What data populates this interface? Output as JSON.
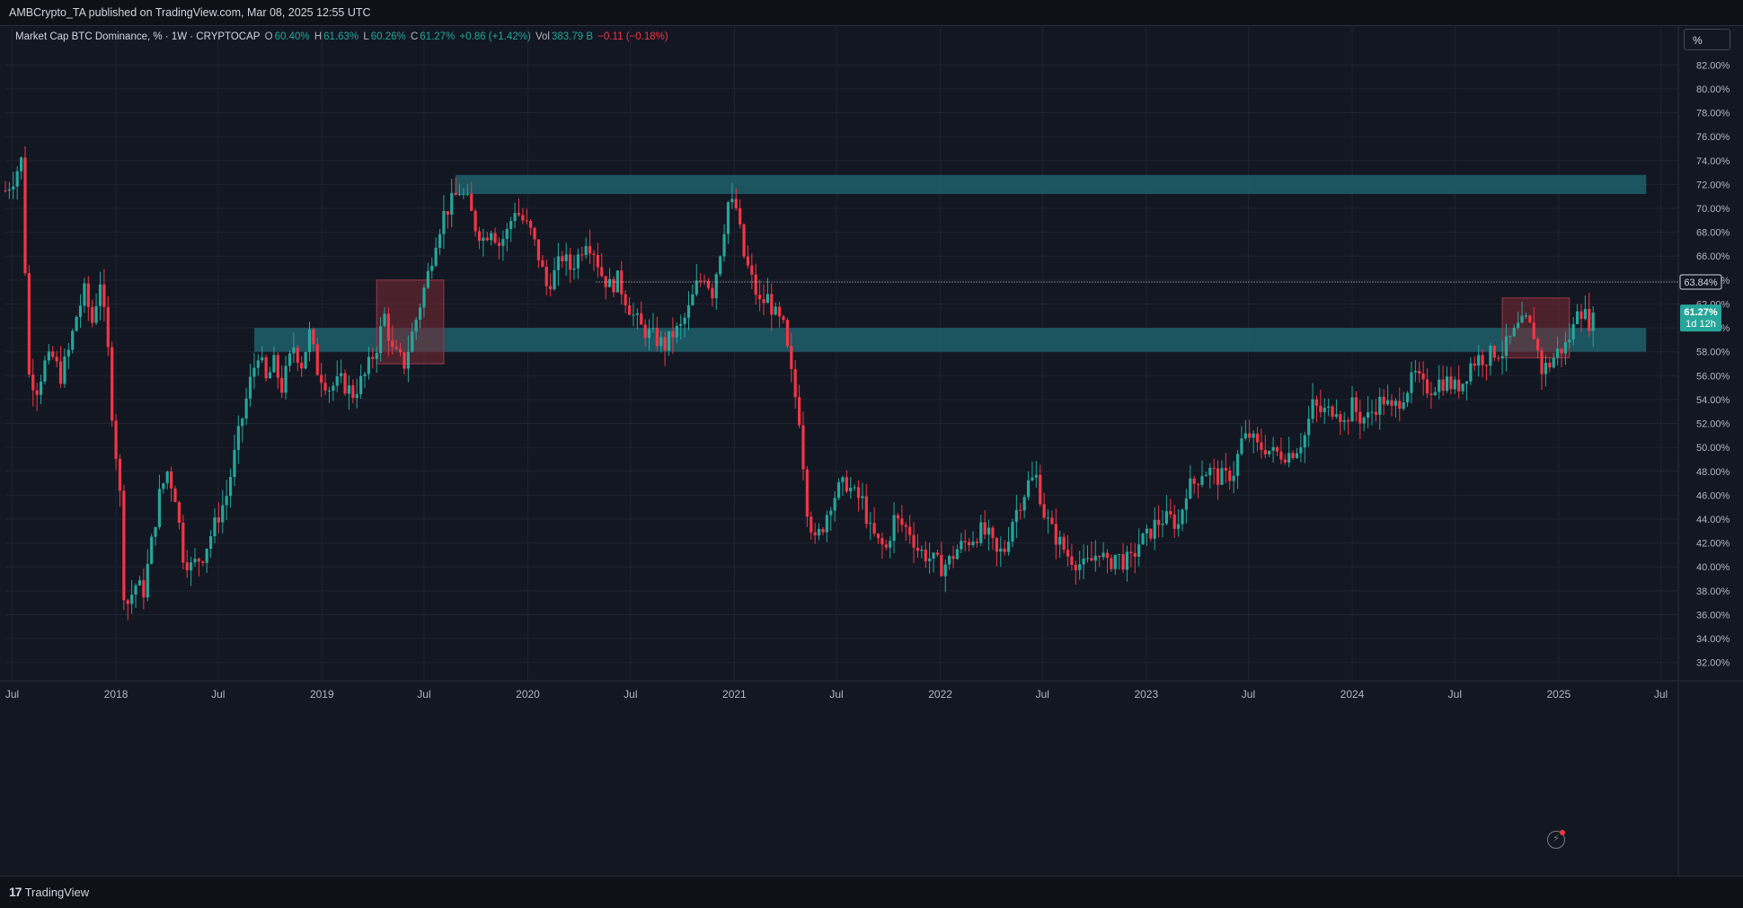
{
  "header": {
    "publisher": "AMBCrypto_TA published on TradingView.com, Mar 08, 2025 12:55 UTC"
  },
  "legend": {
    "symbol": "Market Cap BTC Dominance, % · 1W · CRYPTOCAP",
    "o_label": "O",
    "o_value": "60.40%",
    "h_label": "H",
    "h_value": "61.63%",
    "l_label": "L",
    "l_value": "60.26%",
    "c_label": "C",
    "c_value": "61.27%",
    "change": "+0.86 (+1.42%)",
    "vol_label": "Vol",
    "vol_value": "383.79 B",
    "vol_change": "−0.11 (−0.18%)"
  },
  "scale_button": "%",
  "footer": {
    "brand": "TradingView",
    "brand_mark": "17"
  },
  "colors": {
    "up": "#26a69a",
    "down": "#f23645",
    "zone": "#1e5f6b",
    "red_zone": "#7a2a35",
    "bg": "#131722"
  },
  "chart_data": {
    "type": "candlestick",
    "title": "Market Cap BTC Dominance, % · 1W · CRYPTOCAP",
    "y_unit": "%",
    "ylim": [
      31,
      83
    ],
    "y_ticks": [
      "82.00%",
      "80.00%",
      "78.00%",
      "76.00%",
      "74.00%",
      "72.00%",
      "70.00%",
      "68.00%",
      "66.00%",
      "64.00%",
      "62.00%",
      "60.00%",
      "58.00%",
      "56.00%",
      "54.00%",
      "52.00%",
      "50.00%",
      "48.00%",
      "46.00%",
      "44.00%",
      "42.00%",
      "40.00%",
      "38.00%",
      "36.00%",
      "34.00%",
      "32.00%"
    ],
    "x_range": [
      "2017-06-19",
      "2025-08-01"
    ],
    "x_ticks": [
      {
        "label": "Jul",
        "date": "2017-07-01"
      },
      {
        "label": "2018",
        "date": "2018-01-01"
      },
      {
        "label": "Jul",
        "date": "2018-07-01"
      },
      {
        "label": "2019",
        "date": "2019-01-01"
      },
      {
        "label": "Jul",
        "date": "2019-07-01"
      },
      {
        "label": "2020",
        "date": "2020-01-01"
      },
      {
        "label": "Jul",
        "date": "2020-07-01"
      },
      {
        "label": "2021",
        "date": "2021-01-01"
      },
      {
        "label": "Jul",
        "date": "2021-07-01"
      },
      {
        "label": "2022",
        "date": "2022-01-01"
      },
      {
        "label": "Jul",
        "date": "2022-07-01"
      },
      {
        "label": "2023",
        "date": "2023-01-01"
      },
      {
        "label": "Jul",
        "date": "2023-07-01"
      },
      {
        "label": "2024",
        "date": "2024-01-01"
      },
      {
        "label": "Jul",
        "date": "2024-07-01"
      },
      {
        "label": "2025",
        "date": "2025-01-01"
      },
      {
        "label": "Jul",
        "date": "2025-07-01"
      }
    ],
    "grid": true,
    "path_points": [
      [
        "2017-06-19",
        71.5
      ],
      [
        "2017-07-03",
        72.5
      ],
      [
        "2017-07-17",
        74.0
      ],
      [
        "2017-07-31",
        56.0
      ],
      [
        "2017-08-14",
        55.0
      ],
      [
        "2017-08-28",
        57.0
      ],
      [
        "2017-09-11",
        57.5
      ],
      [
        "2017-09-25",
        56.0
      ],
      [
        "2017-10-09",
        58.0
      ],
      [
        "2017-10-23",
        61.0
      ],
      [
        "2017-11-06",
        63.0
      ],
      [
        "2017-11-20",
        60.5
      ],
      [
        "2017-12-04",
        64.0
      ],
      [
        "2017-12-18",
        58.0
      ],
      [
        "2017-12-25",
        53.0
      ],
      [
        "2018-01-08",
        46.0
      ],
      [
        "2018-01-15",
        38.0
      ],
      [
        "2018-01-22",
        37.0
      ],
      [
        "2018-02-05",
        38.5
      ],
      [
        "2018-02-19",
        38.0
      ],
      [
        "2018-03-05",
        42.0
      ],
      [
        "2018-03-19",
        46.0
      ],
      [
        "2018-04-02",
        48.0
      ],
      [
        "2018-04-16",
        46.0
      ],
      [
        "2018-04-30",
        41.0
      ],
      [
        "2018-05-14",
        40.0
      ],
      [
        "2018-06-04",
        41.0
      ],
      [
        "2018-06-25",
        43.5
      ],
      [
        "2018-07-16",
        46.0
      ],
      [
        "2018-08-06",
        51.0
      ],
      [
        "2018-08-27",
        55.5
      ],
      [
        "2018-09-10",
        58.0
      ],
      [
        "2018-09-24",
        55.5
      ],
      [
        "2018-10-08",
        57.0
      ],
      [
        "2018-10-22",
        55.0
      ],
      [
        "2018-11-12",
        58.5
      ],
      [
        "2018-11-26",
        57.0
      ],
      [
        "2018-12-10",
        59.5
      ],
      [
        "2018-12-24",
        56.5
      ],
      [
        "2019-01-14",
        55.0
      ],
      [
        "2019-02-04",
        55.5
      ],
      [
        "2019-02-25",
        54.5
      ],
      [
        "2019-03-18",
        56.0
      ],
      [
        "2019-04-08",
        58.5
      ],
      [
        "2019-04-22",
        61.0
      ],
      [
        "2019-05-06",
        58.0
      ],
      [
        "2019-05-27",
        57.0
      ],
      [
        "2019-06-10",
        59.5
      ],
      [
        "2019-06-24",
        62.0
      ],
      [
        "2019-07-08",
        64.5
      ],
      [
        "2019-07-22",
        67.5
      ],
      [
        "2019-08-05",
        69.5
      ],
      [
        "2019-08-19",
        70.5
      ],
      [
        "2019-09-02",
        71.5
      ],
      [
        "2019-09-16",
        70.5
      ],
      [
        "2019-09-30",
        68.5
      ],
      [
        "2019-10-14",
        67.5
      ],
      [
        "2019-10-28",
        68.5
      ],
      [
        "2019-11-11",
        67.0
      ],
      [
        "2019-11-25",
        68.0
      ],
      [
        "2019-12-09",
        70.0
      ],
      [
        "2019-12-23",
        69.0
      ],
      [
        "2020-01-06",
        68.0
      ],
      [
        "2020-01-20",
        66.0
      ],
      [
        "2020-02-03",
        63.5
      ],
      [
        "2020-02-17",
        64.5
      ],
      [
        "2020-03-02",
        66.0
      ],
      [
        "2020-03-16",
        65.0
      ],
      [
        "2020-03-30",
        66.0
      ],
      [
        "2020-04-13",
        67.5
      ],
      [
        "2020-04-27",
        66.5
      ],
      [
        "2020-05-11",
        64.5
      ],
      [
        "2020-05-25",
        63.5
      ],
      [
        "2020-06-08",
        64.0
      ],
      [
        "2020-06-22",
        62.5
      ],
      [
        "2020-07-06",
        61.0
      ],
      [
        "2020-07-20",
        60.0
      ],
      [
        "2020-08-03",
        59.5
      ],
      [
        "2020-08-17",
        59.0
      ],
      [
        "2020-08-31",
        58.5
      ],
      [
        "2020-09-14",
        59.5
      ],
      [
        "2020-09-28",
        60.0
      ],
      [
        "2020-10-12",
        61.5
      ],
      [
        "2020-10-26",
        63.5
      ],
      [
        "2020-11-09",
        64.5
      ],
      [
        "2020-11-23",
        63.0
      ],
      [
        "2020-12-07",
        66.5
      ],
      [
        "2020-12-21",
        70.5
      ],
      [
        "2021-01-04",
        70.0
      ],
      [
        "2021-01-18",
        66.0
      ],
      [
        "2021-02-01",
        64.0
      ],
      [
        "2021-02-15",
        62.0
      ],
      [
        "2021-03-01",
        62.5
      ],
      [
        "2021-03-15",
        61.0
      ],
      [
        "2021-03-29",
        60.0
      ],
      [
        "2021-04-12",
        56.0
      ],
      [
        "2021-04-26",
        52.5
      ],
      [
        "2021-05-10",
        45.0
      ],
      [
        "2021-05-24",
        42.0
      ],
      [
        "2021-06-07",
        43.5
      ],
      [
        "2021-06-21",
        45.5
      ],
      [
        "2021-07-05",
        46.5
      ],
      [
        "2021-07-19",
        47.0
      ],
      [
        "2021-08-02",
        46.0
      ],
      [
        "2021-08-16",
        45.5
      ],
      [
        "2021-08-30",
        43.0
      ],
      [
        "2021-09-13",
        42.0
      ],
      [
        "2021-09-27",
        41.5
      ],
      [
        "2021-10-11",
        44.0
      ],
      [
        "2021-10-25",
        43.5
      ],
      [
        "2021-11-08",
        43.0
      ],
      [
        "2021-11-22",
        41.5
      ],
      [
        "2021-12-06",
        41.0
      ],
      [
        "2021-12-20",
        40.5
      ],
      [
        "2022-01-03",
        40.0
      ],
      [
        "2022-01-17",
        40.5
      ],
      [
        "2022-01-31",
        41.5
      ],
      [
        "2022-02-14",
        42.0
      ],
      [
        "2022-02-28",
        42.5
      ],
      [
        "2022-03-14",
        43.0
      ],
      [
        "2022-03-28",
        42.5
      ],
      [
        "2022-04-11",
        41.0
      ],
      [
        "2022-04-25",
        41.5
      ],
      [
        "2022-05-09",
        44.0
      ],
      [
        "2022-05-23",
        45.5
      ],
      [
        "2022-06-06",
        47.0
      ],
      [
        "2022-06-20",
        47.5
      ],
      [
        "2022-07-04",
        44.5
      ],
      [
        "2022-07-18",
        43.0
      ],
      [
        "2022-08-01",
        42.0
      ],
      [
        "2022-08-15",
        41.0
      ],
      [
        "2022-08-29",
        40.5
      ],
      [
        "2022-09-12",
        40.0
      ],
      [
        "2022-09-26",
        40.5
      ],
      [
        "2022-10-10",
        41.5
      ],
      [
        "2022-10-24",
        40.0
      ],
      [
        "2022-11-07",
        41.0
      ],
      [
        "2022-11-21",
        40.5
      ],
      [
        "2022-12-05",
        40.5
      ],
      [
        "2022-12-19",
        42.0
      ],
      [
        "2023-01-02",
        42.5
      ],
      [
        "2023-01-16",
        43.5
      ],
      [
        "2023-01-30",
        44.0
      ],
      [
        "2023-02-13",
        44.0
      ],
      [
        "2023-02-27",
        43.5
      ],
      [
        "2023-03-13",
        46.5
      ],
      [
        "2023-03-27",
        47.0
      ],
      [
        "2023-04-10",
        48.0
      ],
      [
        "2023-04-24",
        48.0
      ],
      [
        "2023-05-08",
        47.5
      ],
      [
        "2023-05-22",
        47.5
      ],
      [
        "2023-06-05",
        48.0
      ],
      [
        "2023-06-19",
        50.5
      ],
      [
        "2023-07-03",
        51.0
      ],
      [
        "2023-07-17",
        50.0
      ],
      [
        "2023-07-31",
        50.0
      ],
      [
        "2023-08-14",
        49.5
      ],
      [
        "2023-08-28",
        49.5
      ],
      [
        "2023-09-11",
        49.5
      ],
      [
        "2023-09-25",
        50.0
      ],
      [
        "2023-10-09",
        51.0
      ],
      [
        "2023-10-23",
        53.5
      ],
      [
        "2023-11-06",
        53.0
      ],
      [
        "2023-11-20",
        53.0
      ],
      [
        "2023-12-04",
        53.5
      ],
      [
        "2023-12-18",
        52.0
      ],
      [
        "2024-01-01",
        53.5
      ],
      [
        "2024-01-15",
        52.5
      ],
      [
        "2024-01-29",
        52.5
      ],
      [
        "2024-02-12",
        53.5
      ],
      [
        "2024-02-26",
        54.0
      ],
      [
        "2024-03-11",
        53.0
      ],
      [
        "2024-03-25",
        54.0
      ],
      [
        "2024-04-08",
        55.0
      ],
      [
        "2024-04-22",
        56.0
      ],
      [
        "2024-05-06",
        55.0
      ],
      [
        "2024-05-20",
        55.0
      ],
      [
        "2024-06-03",
        55.5
      ],
      [
        "2024-06-17",
        55.5
      ],
      [
        "2024-07-01",
        55.0
      ],
      [
        "2024-07-15",
        55.5
      ],
      [
        "2024-07-29",
        57.0
      ],
      [
        "2024-08-12",
        57.5
      ],
      [
        "2024-08-26",
        57.5
      ],
      [
        "2024-09-09",
        58.0
      ],
      [
        "2024-09-23",
        58.0
      ],
      [
        "2024-10-07",
        59.0
      ],
      [
        "2024-10-21",
        60.0
      ],
      [
        "2024-11-04",
        60.5
      ],
      [
        "2024-11-18",
        59.5
      ],
      [
        "2024-12-02",
        56.5
      ],
      [
        "2024-12-16",
        57.0
      ],
      [
        "2024-12-30",
        58.0
      ],
      [
        "2025-01-13",
        58.5
      ],
      [
        "2025-01-27",
        60.0
      ],
      [
        "2025-02-03",
        62.0
      ],
      [
        "2025-02-10",
        61.5
      ],
      [
        "2025-02-17",
        61.0
      ],
      [
        "2025-02-24",
        60.5
      ],
      [
        "2025-03-03",
        61.27
      ]
    ],
    "zones": [
      {
        "kind": "resistance",
        "from": "2019-08-26",
        "to": "2025-06-05",
        "low": 71.2,
        "high": 72.8
      },
      {
        "kind": "support",
        "from": "2018-09-03",
        "to": "2025-06-05",
        "low": 58.0,
        "high": 60.0
      },
      {
        "kind": "highlight",
        "from": "2019-04-08",
        "to": "2019-08-05",
        "low": 57.0,
        "high": 64.0
      },
      {
        "kind": "highlight",
        "from": "2024-09-23",
        "to": "2025-01-20",
        "low": 57.5,
        "high": 62.5
      }
    ],
    "reference_line": {
      "value": 63.84,
      "from": "2020-05-01",
      "label": "63.84%"
    },
    "last_price": {
      "value": 61.27,
      "label": "61.27%",
      "countdown": "1d 12h"
    }
  }
}
